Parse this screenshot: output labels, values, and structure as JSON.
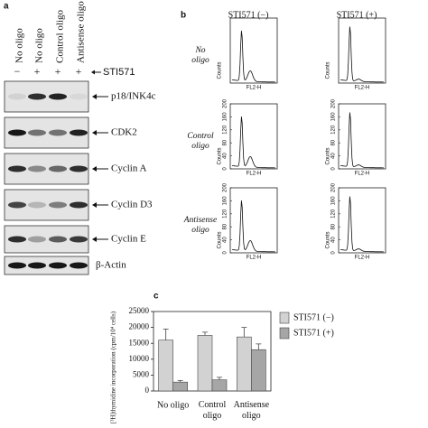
{
  "panel_a": {
    "label": "a",
    "lanes": [
      "No oligo",
      "No oligo",
      "Control oligo",
      "Antisense oligo"
    ],
    "signs": [
      "−",
      "+",
      "+",
      "+"
    ],
    "treatment": "STI571",
    "blots": [
      "p18/INK4c",
      "CDK2",
      "Cyclin A",
      "Cyclin D3",
      "Cyclin E",
      "β-Actin"
    ]
  },
  "panel_b": {
    "label": "b",
    "columns": [
      "STI571 (−)",
      "STI571 (+)"
    ],
    "rows": [
      "No oligo",
      "Control oligo",
      "Antisense oligo"
    ],
    "xlabel": "FL2-H",
    "ylabel": "Counts",
    "yticks": [
      0,
      40,
      80,
      120,
      160,
      200
    ]
  },
  "chart_data": {
    "type": "bar",
    "label": "c",
    "ylabel": "[³H]thymidine incorporation (cpm/10⁴ cells)",
    "categories": [
      "No oligo",
      "Control oligo",
      "Antisense oligo"
    ],
    "series": [
      {
        "name": "STI571 (−)",
        "color": "#d2d2d2",
        "values": [
          16000,
          17500,
          17000
        ],
        "errors": [
          3500,
          1000,
          3000
        ]
      },
      {
        "name": "STI571 (+)",
        "color": "#a6a6a6",
        "values": [
          2800,
          3500,
          13000
        ],
        "errors": [
          500,
          800,
          1800
        ]
      }
    ],
    "ylim": [
      0,
      25000
    ],
    "yticks": [
      0,
      5000,
      10000,
      15000,
      20000,
      25000
    ]
  }
}
